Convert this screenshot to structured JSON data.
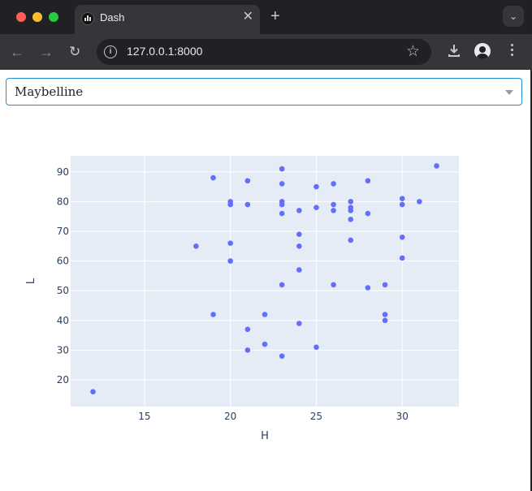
{
  "browser": {
    "tab_title": "Dash",
    "tab_close": "✕",
    "new_tab": "+",
    "tab_menu": "⌄",
    "url": "127.0.0.1:8000",
    "traffic_colors": [
      "#ff5f57",
      "#febc2e",
      "#28c840"
    ],
    "icons": [
      "back-arrow-icon",
      "forward-arrow-icon",
      "reload-icon",
      "info-icon",
      "star-icon",
      "download-icon",
      "profile-icon",
      "menu-icon"
    ]
  },
  "dropdown": {
    "value": "Maybelline"
  },
  "chart_data": {
    "type": "scatter",
    "xlabel": "H",
    "ylabel": "L",
    "xlim": [
      10.7,
      33.3
    ],
    "ylim": [
      11,
      95.4
    ],
    "xticks": [
      15,
      20,
      25,
      30
    ],
    "yticks": [
      20,
      30,
      40,
      50,
      60,
      70,
      80,
      90
    ],
    "marker_color": "#636efa",
    "plot_bg": "#e5ecf6",
    "grid": true,
    "points": [
      {
        "x": 12,
        "y": 16
      },
      {
        "x": 18,
        "y": 65
      },
      {
        "x": 19,
        "y": 88
      },
      {
        "x": 19,
        "y": 42
      },
      {
        "x": 20,
        "y": 80
      },
      {
        "x": 20,
        "y": 79
      },
      {
        "x": 20,
        "y": 66
      },
      {
        "x": 20,
        "y": 60
      },
      {
        "x": 21,
        "y": 87
      },
      {
        "x": 21,
        "y": 79
      },
      {
        "x": 21,
        "y": 37
      },
      {
        "x": 21,
        "y": 30
      },
      {
        "x": 22,
        "y": 42
      },
      {
        "x": 22,
        "y": 32
      },
      {
        "x": 23,
        "y": 91
      },
      {
        "x": 23,
        "y": 86
      },
      {
        "x": 23,
        "y": 80
      },
      {
        "x": 23,
        "y": 79
      },
      {
        "x": 23,
        "y": 76
      },
      {
        "x": 23,
        "y": 52
      },
      {
        "x": 23,
        "y": 28
      },
      {
        "x": 24,
        "y": 77
      },
      {
        "x": 24,
        "y": 69
      },
      {
        "x": 24,
        "y": 65
      },
      {
        "x": 24,
        "y": 57
      },
      {
        "x": 24,
        "y": 39
      },
      {
        "x": 25,
        "y": 85
      },
      {
        "x": 25,
        "y": 78
      },
      {
        "x": 25,
        "y": 31
      },
      {
        "x": 26,
        "y": 86
      },
      {
        "x": 26,
        "y": 79
      },
      {
        "x": 26,
        "y": 77
      },
      {
        "x": 26,
        "y": 52
      },
      {
        "x": 27,
        "y": 80
      },
      {
        "x": 27,
        "y": 78
      },
      {
        "x": 27,
        "y": 77
      },
      {
        "x": 27,
        "y": 74
      },
      {
        "x": 27,
        "y": 67
      },
      {
        "x": 28,
        "y": 87
      },
      {
        "x": 28,
        "y": 76
      },
      {
        "x": 28,
        "y": 51
      },
      {
        "x": 29,
        "y": 52
      },
      {
        "x": 29,
        "y": 42
      },
      {
        "x": 29,
        "y": 40
      },
      {
        "x": 30,
        "y": 81
      },
      {
        "x": 30,
        "y": 79
      },
      {
        "x": 30,
        "y": 68
      },
      {
        "x": 30,
        "y": 61
      },
      {
        "x": 31,
        "y": 80
      },
      {
        "x": 32,
        "y": 92
      }
    ]
  }
}
